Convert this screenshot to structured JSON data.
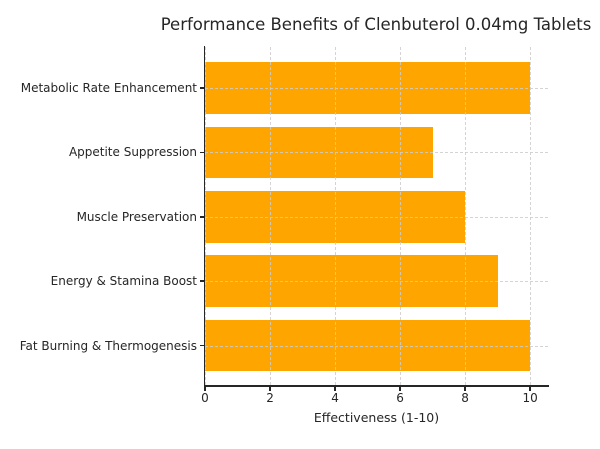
{
  "chart_data": {
    "type": "bar",
    "orientation": "horizontal",
    "title": "Performance Benefits of Clenbuterol 0.04mg Tablets",
    "categories": [
      "Metabolic Rate Enhancement",
      "Appetite Suppression",
      "Muscle Preservation",
      "Energy & Stamina Boost",
      "Fat Burning & Thermogenesis"
    ],
    "values": [
      10,
      7,
      8,
      9,
      10
    ],
    "xlabel": "Effectiveness (1-10)",
    "xticks": [
      0,
      2,
      4,
      6,
      8,
      10
    ],
    "xlim": [
      0,
      10.55
    ],
    "grid": true,
    "legend": false,
    "bar_color": "#FFA500",
    "grid_color": "#cccccc",
    "text_color": "#262626",
    "spine_color": "#262626",
    "background_color": "#ffffff"
  }
}
